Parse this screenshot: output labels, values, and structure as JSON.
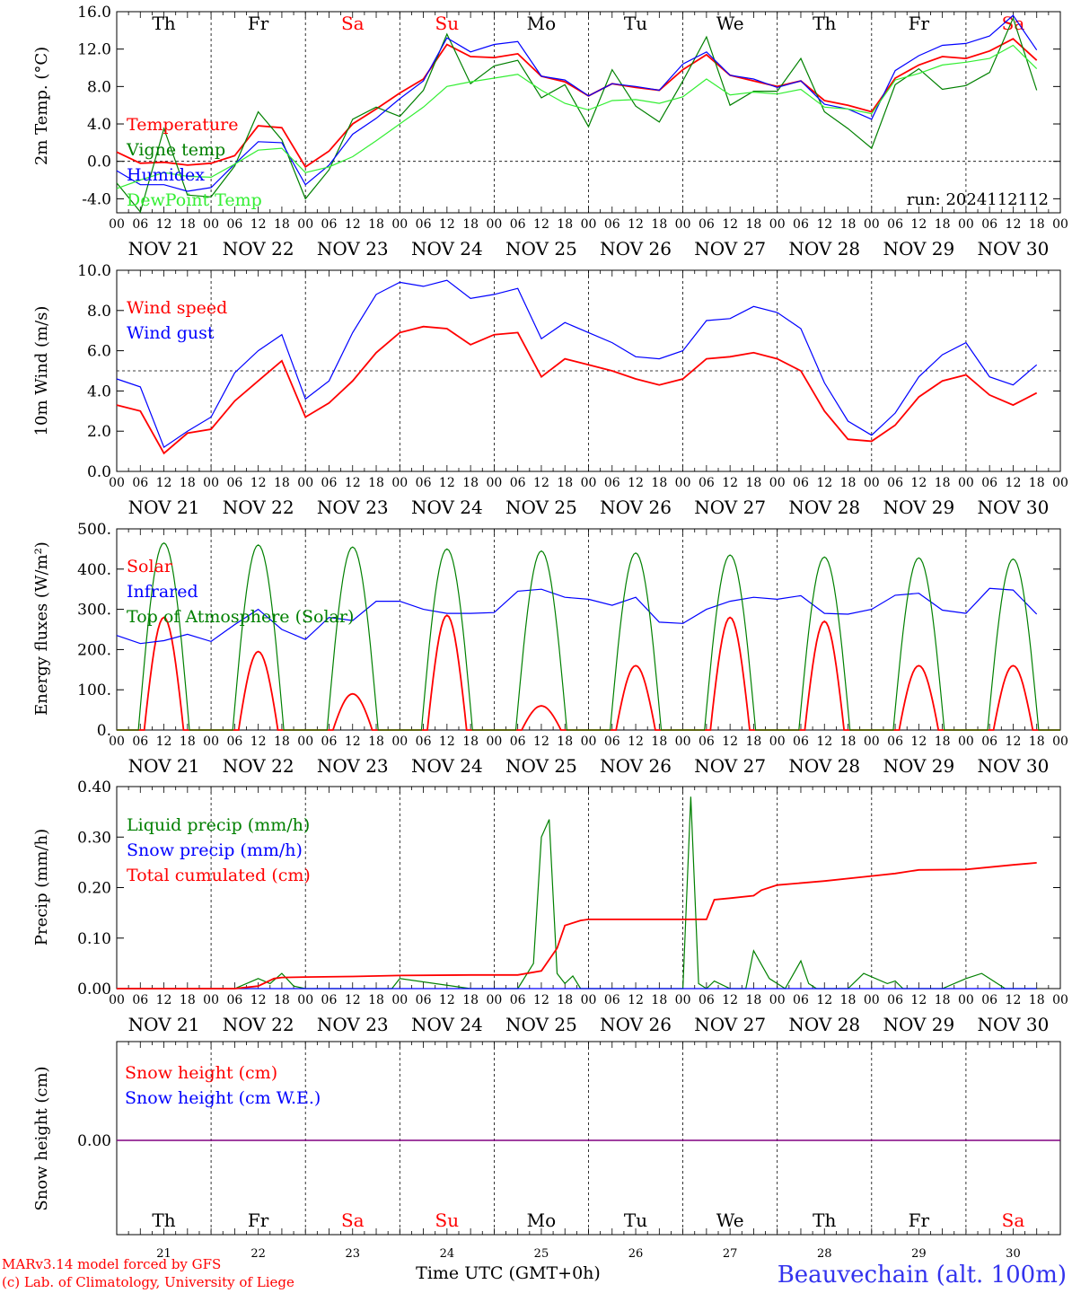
{
  "footer": {
    "credit_line1": "MARv3.14 model forced by GFS",
    "credit_line2": "(c) Lab. of Climatology, University of Liege",
    "xaxis_title": "Time UTC (GMT+0h)",
    "station": "Beauvechain (alt. 100m)"
  },
  "days": [
    "21",
    "22",
    "23",
    "24",
    "25",
    "26",
    "27",
    "28",
    "29",
    "30"
  ],
  "date_labels": [
    "NOV 21",
    "NOV 22",
    "NOV 23",
    "NOV 24",
    "NOV 25",
    "NOV 26",
    "NOV 27",
    "NOV 28",
    "NOV 29",
    "NOV 30"
  ],
  "weekdays": [
    "Th",
    "Fr",
    "Sa",
    "Su",
    "Mo",
    "Tu",
    "We",
    "Th",
    "Fr",
    "Sa"
  ],
  "weekend_flags": [
    false,
    false,
    true,
    true,
    false,
    false,
    false,
    false,
    false,
    true
  ],
  "hour_ticks": [
    "00",
    "06",
    "12",
    "18"
  ],
  "colors": {
    "red": "#ff0000",
    "green": "#008000",
    "blue": "#0000ff",
    "lightgreen": "#33ee33",
    "snow_line": "#800080"
  },
  "chart_data": [
    {
      "type": "line",
      "ylabel": "2m Temp. (°C)",
      "ylim": [
        -5.5,
        16.0
      ],
      "yticks": [
        "16.0",
        "12.0",
        "8.0",
        "4.0",
        "0.0",
        "-4.0"
      ],
      "ytick_values": [
        16,
        12,
        8,
        4,
        0,
        -4
      ],
      "ref_line": 0,
      "annotation": "run: 2024112112",
      "x_unit": "hours from NOV 21 00 UTC",
      "series": [
        {
          "name": "Temperature",
          "color": "red",
          "x": [
            0,
            6,
            12,
            18,
            24,
            30,
            36,
            42,
            48,
            54,
            60,
            66,
            72,
            78,
            84,
            90,
            96,
            102,
            108,
            114,
            120,
            126,
            132,
            138,
            144,
            150,
            156,
            162,
            168,
            174,
            180,
            186,
            192,
            198,
            204,
            210,
            216,
            222,
            228,
            234
          ],
          "y": [
            1.0,
            -0.2,
            -0.1,
            -0.4,
            -0.2,
            0.6,
            3.8,
            3.6,
            -0.6,
            1.1,
            4.0,
            5.6,
            7.3,
            8.8,
            12.5,
            11.2,
            11.1,
            11.5,
            9.1,
            8.5,
            7.0,
            8.3,
            7.9,
            7.6,
            9.8,
            11.4,
            9.2,
            8.6,
            8.0,
            8.6,
            6.5,
            6.0,
            5.3,
            8.9,
            10.3,
            11.2,
            11.0,
            11.8,
            13.1,
            10.8
          ]
        },
        {
          "name": "Vigne temp",
          "color": "green",
          "x": [
            0,
            6,
            12,
            18,
            24,
            30,
            36,
            42,
            48,
            54,
            60,
            66,
            72,
            78,
            84,
            90,
            96,
            102,
            108,
            114,
            120,
            126,
            132,
            138,
            144,
            150,
            156,
            162,
            168,
            174,
            180,
            186,
            192,
            198,
            204,
            210,
            216,
            222,
            228,
            234
          ],
          "y": [
            -2.3,
            -5.4,
            3.5,
            -3.6,
            -3.8,
            -0.5,
            5.3,
            2.3,
            -4.0,
            -0.9,
            4.5,
            5.8,
            4.8,
            7.6,
            13.6,
            8.3,
            10.2,
            10.8,
            6.8,
            8.2,
            3.7,
            9.8,
            5.9,
            4.2,
            8.6,
            13.3,
            6.0,
            7.5,
            7.5,
            11.0,
            5.3,
            3.5,
            1.4,
            8.2,
            9.9,
            7.7,
            8.1,
            9.5,
            15.3,
            7.6
          ]
        },
        {
          "name": "Humidex",
          "color": "blue",
          "x": [
            0,
            6,
            12,
            18,
            24,
            30,
            36,
            42,
            48,
            54,
            60,
            66,
            72,
            78,
            84,
            90,
            96,
            102,
            108,
            114,
            120,
            126,
            132,
            138,
            144,
            150,
            156,
            162,
            168,
            174,
            180,
            186,
            192,
            198,
            204,
            210,
            216,
            222,
            228,
            234
          ],
          "y": [
            -1.0,
            -2.5,
            -2.5,
            -3.2,
            -2.8,
            -0.3,
            2.1,
            2.0,
            -2.5,
            -0.4,
            2.9,
            4.6,
            6.7,
            8.6,
            13.2,
            11.7,
            12.5,
            12.8,
            9.1,
            8.7,
            7.0,
            8.3,
            8.0,
            7.6,
            10.4,
            11.7,
            9.2,
            8.8,
            7.9,
            8.6,
            6.1,
            5.6,
            4.5,
            9.7,
            11.3,
            12.4,
            12.6,
            13.4,
            15.6,
            11.9
          ]
        },
        {
          "name": "DewPoint Temp",
          "color": "lightgreen",
          "x": [
            0,
            6,
            12,
            18,
            24,
            30,
            36,
            42,
            48,
            54,
            60,
            66,
            72,
            78,
            84,
            90,
            96,
            102,
            108,
            114,
            120,
            126,
            132,
            138,
            144,
            150,
            156,
            162,
            168,
            174,
            180,
            186,
            192,
            198,
            204,
            210,
            216,
            222,
            228,
            234
          ],
          "y": [
            -2.9,
            -2.0,
            -1.2,
            -1.6,
            -1.7,
            -0.3,
            1.2,
            1.4,
            -1.2,
            -0.6,
            0.5,
            2.2,
            4.0,
            5.8,
            8.0,
            8.5,
            8.9,
            9.3,
            7.6,
            6.2,
            5.5,
            6.5,
            6.6,
            6.2,
            6.9,
            8.8,
            7.1,
            7.4,
            7.2,
            7.7,
            5.8,
            5.6,
            5.1,
            8.7,
            9.4,
            10.3,
            10.6,
            11.0,
            12.4,
            9.9
          ]
        }
      ]
    },
    {
      "type": "line",
      "ylabel": "10m Wind (m/s)",
      "ylim": [
        0,
        10
      ],
      "yticks": [
        "10.0",
        "8.0",
        "6.0",
        "4.0",
        "2.0",
        "0.0"
      ],
      "ytick_values": [
        10,
        8,
        6,
        4,
        2,
        0
      ],
      "ref_line": 5,
      "x_unit": "hours from NOV 21 00 UTC",
      "series": [
        {
          "name": "Wind speed",
          "color": "red",
          "x": [
            0,
            6,
            12,
            18,
            24,
            30,
            36,
            42,
            48,
            54,
            60,
            66,
            72,
            78,
            84,
            90,
            96,
            102,
            108,
            114,
            120,
            126,
            132,
            138,
            144,
            150,
            156,
            162,
            168,
            174,
            180,
            186,
            192,
            198,
            204,
            210,
            216,
            222,
            228,
            234
          ],
          "y": [
            3.3,
            3.0,
            0.9,
            1.9,
            2.1,
            3.5,
            4.5,
            5.5,
            2.7,
            3.4,
            4.5,
            5.9,
            6.9,
            7.2,
            7.1,
            6.3,
            6.8,
            6.9,
            4.7,
            5.6,
            5.3,
            5.0,
            4.6,
            4.3,
            4.6,
            5.6,
            5.7,
            5.9,
            5.6,
            5.0,
            3.0,
            1.6,
            1.5,
            2.3,
            3.7,
            4.5,
            4.8,
            3.8,
            3.3,
            3.9
          ]
        },
        {
          "name": "Wind gust",
          "color": "blue",
          "x": [
            0,
            6,
            12,
            18,
            24,
            30,
            36,
            42,
            48,
            54,
            60,
            66,
            72,
            78,
            84,
            90,
            96,
            102,
            108,
            114,
            120,
            126,
            132,
            138,
            144,
            150,
            156,
            162,
            168,
            174,
            180,
            186,
            192,
            198,
            204,
            210,
            216,
            222,
            228,
            234
          ],
          "y": [
            4.6,
            4.2,
            1.2,
            2.0,
            2.7,
            4.9,
            6.0,
            6.8,
            3.6,
            4.5,
            6.9,
            8.8,
            9.4,
            9.2,
            9.5,
            8.6,
            8.8,
            9.1,
            6.6,
            7.4,
            6.9,
            6.4,
            5.7,
            5.6,
            6.0,
            7.5,
            7.6,
            8.2,
            7.9,
            7.1,
            4.4,
            2.5,
            1.8,
            2.9,
            4.7,
            5.8,
            6.4,
            4.7,
            4.3,
            5.3
          ]
        }
      ]
    },
    {
      "type": "line",
      "ylabel": "Energy fluxes (W/m²)",
      "ylim": [
        0,
        500
      ],
      "yticks": [
        "500.",
        "400.",
        "300.",
        "200.",
        "100.",
        "0."
      ],
      "ytick_values": [
        500,
        400,
        300,
        200,
        100,
        0
      ],
      "x_unit": "hours from NOV 21 00 UTC",
      "daily_peak_hour": 12,
      "series": [
        {
          "name": "Solar",
          "color": "red",
          "kind": "daily_peaks",
          "peaks": [
            280,
            195,
            90,
            285,
            60,
            160,
            280,
            270,
            160,
            160
          ]
        },
        {
          "name": "Infrared",
          "color": "blue",
          "x": [
            0,
            6,
            12,
            18,
            24,
            30,
            36,
            42,
            48,
            54,
            60,
            66,
            72,
            78,
            84,
            90,
            96,
            102,
            108,
            114,
            120,
            126,
            132,
            138,
            144,
            150,
            156,
            162,
            168,
            174,
            180,
            186,
            192,
            198,
            204,
            210,
            216,
            222,
            228,
            234
          ],
          "y": [
            235,
            215,
            222,
            238,
            220,
            262,
            300,
            250,
            225,
            280,
            272,
            320,
            320,
            300,
            290,
            290,
            292,
            345,
            350,
            330,
            325,
            310,
            330,
            268,
            265,
            300,
            320,
            330,
            325,
            334,
            290,
            288,
            300,
            335,
            340,
            298,
            290,
            352,
            348,
            288
          ]
        },
        {
          "name": "Top of Atmosphere (Solar)",
          "color": "green",
          "kind": "daily_peaks",
          "peaks": [
            465,
            460,
            455,
            450,
            445,
            440,
            435,
            430,
            428,
            425
          ]
        }
      ]
    },
    {
      "type": "line",
      "ylabel": "Precip (mm/h)",
      "ylim": [
        0,
        0.4
      ],
      "yticks": [
        "0.40",
        "0.30",
        "0.20",
        "0.10",
        "0.00"
      ],
      "ytick_values": [
        0.4,
        0.3,
        0.2,
        0.1,
        0.0
      ],
      "x_unit": "hours from NOV 21 00 UTC",
      "series": [
        {
          "name": "Liquid precip (mm/h)",
          "color": "green",
          "x": [
            0,
            30,
            36,
            39,
            42,
            45,
            48,
            70,
            72,
            90,
            96,
            102,
            106,
            108,
            110,
            112,
            114,
            116,
            118,
            120,
            126,
            130,
            132,
            140,
            144,
            146,
            148,
            150,
            152,
            156,
            160,
            162,
            166,
            168,
            170,
            174,
            176,
            178,
            180,
            186,
            190,
            196,
            198,
            200,
            204,
            210,
            216,
            220,
            222,
            224,
            226,
            234
          ],
          "y": [
            0,
            0,
            0.02,
            0.01,
            0.03,
            0.005,
            0,
            0,
            0.02,
            0,
            0,
            0,
            0.05,
            0.3,
            0.335,
            0.03,
            0.01,
            0.025,
            0,
            0,
            0,
            0,
            0,
            0,
            0,
            0.38,
            0.01,
            0,
            0.015,
            0,
            0,
            0.075,
            0.02,
            0.01,
            0,
            0.055,
            0.01,
            0,
            0,
            0,
            0.03,
            0.01,
            0.015,
            0,
            0,
            0,
            0.02,
            0.03,
            0.02,
            0.01,
            0,
            0
          ]
        },
        {
          "name": "Snow precip (mm/h)",
          "color": "blue",
          "x": [
            0,
            234
          ],
          "y": [
            0,
            0
          ]
        },
        {
          "name": "Total cumulated (cm)",
          "color": "red",
          "x": [
            0,
            30,
            36,
            40,
            42,
            48,
            60,
            72,
            90,
            102,
            108,
            112,
            114,
            118,
            120,
            126,
            132,
            138,
            144,
            150,
            152,
            156,
            162,
            164,
            168,
            180,
            192,
            198,
            204,
            216,
            228,
            234
          ],
          "y": [
            0,
            0,
            0.005,
            0.02,
            0.022,
            0.023,
            0.024,
            0.026,
            0.027,
            0.027,
            0.035,
            0.08,
            0.125,
            0.135,
            0.137,
            0.137,
            0.137,
            0.137,
            0.137,
            0.137,
            0.176,
            0.179,
            0.184,
            0.195,
            0.205,
            0.213,
            0.223,
            0.228,
            0.235,
            0.236,
            0.245,
            0.249
          ]
        }
      ]
    },
    {
      "type": "line",
      "ylabel": "Snow height (cm)",
      "yticks": [
        "0.00"
      ],
      "ytick_values": [
        0
      ],
      "x_unit": "hours from NOV 21 00 UTC",
      "series": [
        {
          "name": "Snow height (cm)",
          "color": "red",
          "x": [
            0,
            240
          ],
          "y": [
            0,
            0
          ]
        },
        {
          "name": "Snow height (cm W.E.)",
          "color": "blue",
          "x": [
            0,
            240
          ],
          "y": [
            0,
            0
          ]
        }
      ]
    }
  ]
}
